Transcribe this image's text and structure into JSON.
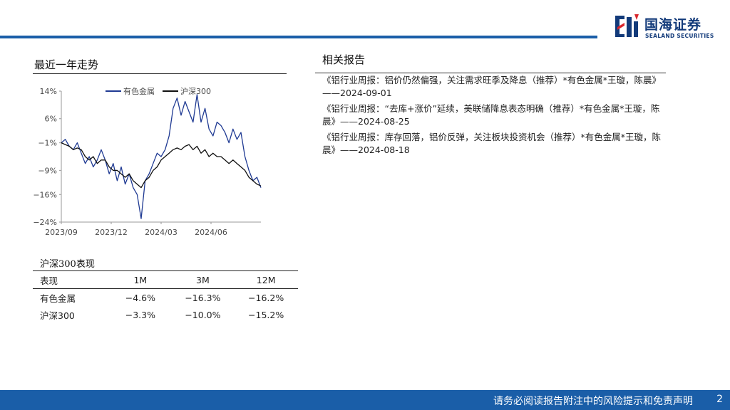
{
  "header": {
    "brand_cn": "国海证券",
    "brand_en": "SEALAND SECURITIES",
    "accent_color": "#1a5ea8",
    "logo_color": "#123a7a"
  },
  "left_section": {
    "title": "最近一年走势"
  },
  "chart_data": {
    "type": "line",
    "legend_position": "top",
    "grid": false,
    "ylim": [
      -24,
      14
    ],
    "y_ticks": [
      "14%",
      "6%",
      "−1%",
      "−9%",
      "−16%",
      "−24%"
    ],
    "y_tick_values": [
      14,
      6,
      -1,
      -9,
      -16,
      -24
    ],
    "x_ticks": [
      "2023/09",
      "2023/12",
      "2024/03",
      "2024/06"
    ],
    "x_tick_positions": [
      0.0,
      0.25,
      0.5,
      0.75
    ],
    "x_range": [
      0,
      1
    ],
    "series": [
      {
        "name": "有色金属",
        "color": "#1f3a93",
        "x": [
          0,
          0.02,
          0.04,
          0.06,
          0.08,
          0.1,
          0.12,
          0.14,
          0.16,
          0.18,
          0.2,
          0.22,
          0.24,
          0.26,
          0.28,
          0.3,
          0.32,
          0.34,
          0.36,
          0.38,
          0.4,
          0.42,
          0.44,
          0.46,
          0.48,
          0.5,
          0.52,
          0.54,
          0.56,
          0.58,
          0.6,
          0.62,
          0.64,
          0.66,
          0.68,
          0.7,
          0.72,
          0.74,
          0.76,
          0.78,
          0.8,
          0.82,
          0.84,
          0.86,
          0.88,
          0.9,
          0.92,
          0.94,
          0.96,
          0.98,
          1.0
        ],
        "values": [
          -1,
          0,
          -2,
          -3,
          -1,
          -4,
          -7,
          -5,
          -8,
          -6,
          -3,
          -6,
          -10,
          -7,
          -12,
          -8,
          -13,
          -10,
          -14,
          -16,
          -23,
          -12,
          -10,
          -7,
          -4,
          -5,
          -3,
          1,
          9,
          12,
          7,
          11,
          8,
          5,
          13,
          5,
          9,
          3,
          1,
          5,
          4,
          2,
          -1,
          3,
          0,
          2,
          -5,
          -9,
          -12,
          -11,
          -14
        ]
      },
      {
        "name": "沪深300",
        "color": "#111111",
        "x": [
          0,
          0.02,
          0.04,
          0.06,
          0.08,
          0.1,
          0.12,
          0.14,
          0.16,
          0.18,
          0.2,
          0.22,
          0.24,
          0.26,
          0.28,
          0.3,
          0.32,
          0.34,
          0.36,
          0.38,
          0.4,
          0.42,
          0.44,
          0.46,
          0.48,
          0.5,
          0.52,
          0.54,
          0.56,
          0.58,
          0.6,
          0.62,
          0.64,
          0.66,
          0.68,
          0.7,
          0.72,
          0.74,
          0.76,
          0.78,
          0.8,
          0.82,
          0.84,
          0.86,
          0.88,
          0.9,
          0.92,
          0.94,
          0.96,
          0.98,
          1.0
        ],
        "values": [
          -1,
          -1.5,
          -2,
          -3,
          -2.5,
          -3,
          -5,
          -6,
          -5,
          -7,
          -6,
          -6,
          -8,
          -9,
          -9,
          -10,
          -11,
          -10,
          -12,
          -13,
          -14,
          -12,
          -11,
          -9,
          -8,
          -6,
          -5,
          -4,
          -3,
          -2.5,
          -3,
          -2,
          -1.5,
          -3,
          -2,
          -4,
          -3,
          -5,
          -4,
          -5,
          -5,
          -6,
          -7,
          -6,
          -7,
          -8,
          -9,
          -11,
          -12,
          -13,
          -13.5
        ]
      }
    ]
  },
  "perf": {
    "title": "沪深300表现",
    "headers": [
      "表现",
      "1M",
      "3M",
      "12M"
    ],
    "rows": [
      [
        "有色金属",
        "−4.6%",
        "−16.3%",
        "−16.2%"
      ],
      [
        "沪深300",
        "−3.3%",
        "−10.0%",
        "−15.2%"
      ]
    ]
  },
  "right_section": {
    "title": "相关报告",
    "reports": [
      "《铝行业周报：铝价仍然偏强，关注需求旺季及降息（推荐）*有色金属*王璇，陈晨》——2024-09-01",
      "《铝行业周报：“去库+涨价”延续，美联储降息表态明确（推荐）*有色金属*王璇，陈晨》——2024-08-25",
      "《铝行业周报：库存回落，铝价反弹，关注板块投资机会（推荐）*有色金属*王璇，陈晨》——2024-08-18"
    ]
  },
  "footer": {
    "disclaimer": "请务必阅读报告附注中的风险提示和免责声明",
    "page_number": "2"
  }
}
